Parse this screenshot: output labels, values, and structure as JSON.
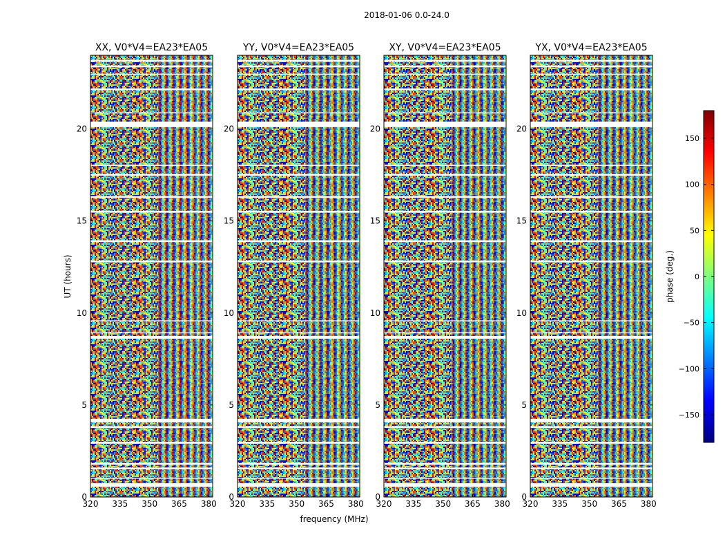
{
  "figure_title": "2018-01-06 0.0-24.0",
  "chart_data": {
    "type": "heatmap",
    "suptitle": "2018-01-06 0.0-24.0",
    "panels": [
      {
        "title": "XX, V0*V4=EA23*EA05",
        "pol": "XX"
      },
      {
        "title": "YY, V0*V4=EA23*EA05",
        "pol": "YY"
      },
      {
        "title": "XY, V0*V4=EA23*EA05",
        "pol": "XY"
      },
      {
        "title": "YX, V0*V4=EA23*EA05",
        "pol": "YX"
      }
    ],
    "xlabel": "frequency (MHz)",
    "ylabel": "UT (hours)",
    "xlim": [
      320,
      382
    ],
    "ylim": [
      0,
      24
    ],
    "xticks": [
      320,
      335,
      350,
      365,
      380
    ],
    "xtick_labels": [
      "320",
      "335",
      "350",
      "365",
      "380"
    ],
    "yticks": [
      0,
      5,
      10,
      15,
      20
    ],
    "ytick_labels": [
      "0",
      "5",
      "10",
      "15",
      "20"
    ],
    "colorbar": {
      "label": "phase (deg.)",
      "vmin": -180,
      "vmax": 180,
      "ticks": [
        -150,
        -100,
        -50,
        0,
        50,
        100,
        150
      ],
      "tick_labels": [
        "−150",
        "−100",
        "−50",
        "0",
        "50",
        "100",
        "150"
      ],
      "colormap": "jet",
      "colors": [
        "#00007f",
        "#0000ff",
        "#007fff",
        "#00ffff",
        "#7fff7f",
        "#ffff00",
        "#ff7f00",
        "#ff0000",
        "#7f0000"
      ]
    },
    "data_gaps_hours": [
      [
        0.55,
        0.75
      ],
      [
        1.0,
        1.05
      ],
      [
        1.5,
        1.6
      ],
      [
        1.75,
        1.85
      ],
      [
        2.9,
        3.0
      ],
      [
        3.75,
        3.85
      ],
      [
        4.05,
        4.25
      ],
      [
        8.6,
        8.75
      ],
      [
        8.9,
        8.95
      ],
      [
        9.55,
        9.6
      ],
      [
        12.75,
        12.85
      ],
      [
        13.85,
        13.95
      ],
      [
        15.45,
        15.55
      ],
      [
        16.25,
        16.35
      ],
      [
        17.45,
        17.55
      ],
      [
        18.0,
        18.05
      ],
      [
        20.1,
        20.4
      ],
      [
        20.85,
        20.9
      ],
      [
        22.1,
        22.2
      ],
      [
        22.95,
        23.0
      ],
      [
        23.35,
        23.45
      ],
      [
        23.65,
        23.75
      ]
    ]
  }
}
